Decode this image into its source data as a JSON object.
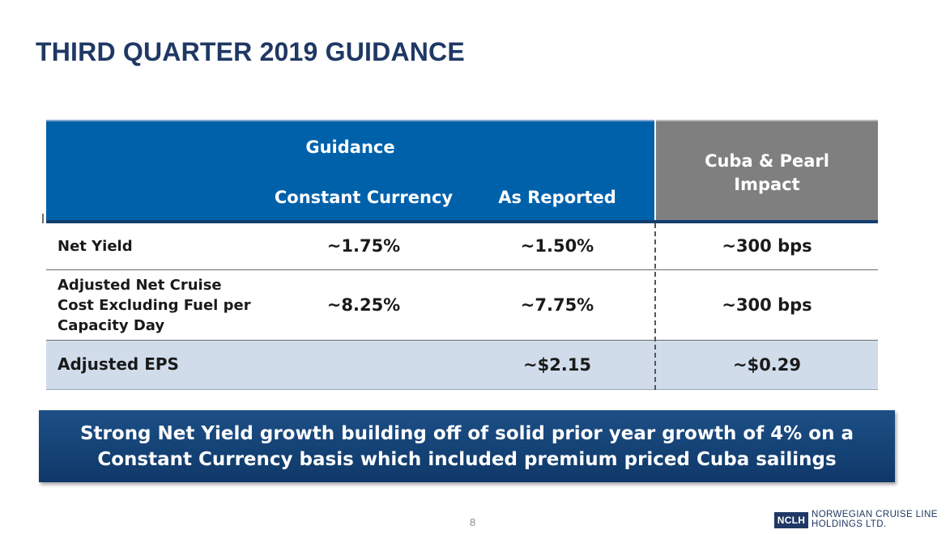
{
  "title": "THIRD QUARTER 2019 GUIDANCE",
  "table": {
    "group_header": "Guidance",
    "columns": {
      "constant_currency": "Constant Currency",
      "as_reported": "As Reported",
      "impact": "Cuba & Pearl Impact"
    },
    "rows": [
      {
        "label": "Net Yield",
        "constant_currency": "~1.75%",
        "as_reported": "~1.50%",
        "impact": "~300 bps"
      },
      {
        "label_lines": [
          "Adjusted Net Cruise",
          "Cost Excluding Fuel per",
          "Capacity Day"
        ],
        "constant_currency": "~8.25%",
        "as_reported": "~7.75%",
        "impact": "~300 bps"
      },
      {
        "label": "Adjusted EPS",
        "constant_currency": "",
        "as_reported": "~$2.15",
        "impact": "~$0.29"
      }
    ]
  },
  "banner": {
    "line1": "Strong Net Yield growth building off of solid prior year growth of 4% on a",
    "line2": "Constant Currency basis which included premium priced Cuba sailings"
  },
  "page_number": "8",
  "logo": {
    "abbr": "NCLH",
    "line1": "NORWEGIAN CRUISE LINE",
    "line2": "HOLDINGS LTD."
  },
  "colors": {
    "title": "#1f3864",
    "header_blue": "#0061ab",
    "header_gray": "#7f7f7f",
    "eps_row": "#d0dcea",
    "banner": "#163f73"
  }
}
